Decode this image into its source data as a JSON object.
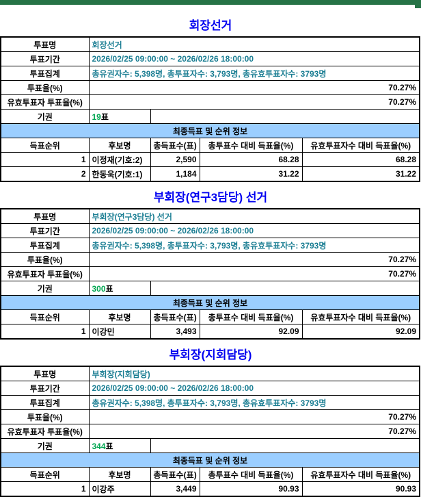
{
  "colors": {
    "top_bar_green": "#267346",
    "title_blue": "#0000f0",
    "value_teal": "#1b7e93",
    "abstain_green": "#00a651",
    "banner_blue": "#9bceff"
  },
  "labels": {
    "vote_name": "투표명",
    "period": "투표기간",
    "tally": "투표집계",
    "turnout": "투표율(%)",
    "valid_turnout": "유효투표자 투표율(%)",
    "abstain": "기권",
    "results_banner": "최종득표 및 순위 정보",
    "results_columns": [
      "득표순위",
      "후보명",
      "총득표수(표)",
      "총투표수 대비 득표율(%)",
      "유효투표자수 대비 득표율(%)"
    ]
  },
  "sections": [
    {
      "title": "회장선거",
      "vote_name": "회장선거",
      "period": "2026/02/25 09:00:00 ~ 2026/02/26 18:00:00",
      "tally": "총유권자수: 5,398명, 총투표자수: 3,793명, 총유효투표자수: 3793명",
      "turnout": "70.27%",
      "valid_turnout": "70.27%",
      "abstain_count": "19",
      "abstain_unit": "표",
      "candidates": [
        {
          "rank": "1",
          "name": "이정재(기호:2)",
          "votes": "2,590",
          "pct_total": "68.28",
          "pct_valid": "68.28"
        },
        {
          "rank": "2",
          "name": "한동욱(기호:1)",
          "votes": "1,184",
          "pct_total": "31.22",
          "pct_valid": "31.22"
        }
      ]
    },
    {
      "title": "부회장(연구3담당) 선거",
      "vote_name": "부회장(연구3담당) 선거",
      "period": "2026/02/25 09:00:00 ~ 2026/02/26 18:00:00",
      "tally": "총유권자수: 5,398명, 총투표자수: 3,793명, 총유효투표자수: 3793명",
      "turnout": "70.27%",
      "valid_turnout": "70.27%",
      "abstain_count": "300",
      "abstain_unit": "표",
      "candidates": [
        {
          "rank": "1",
          "name": "이강민",
          "votes": "3,493",
          "pct_total": "92.09",
          "pct_valid": "92.09"
        }
      ]
    },
    {
      "title": "부회장(지회담당)",
      "vote_name": "부회장(지회담당)",
      "period": "2026/02/25 09:00:00 ~ 2026/02/26 18:00:00",
      "tally": "총유권자수: 5,398명, 총투표자수: 3,793명, 총유효투표자수: 3793명",
      "turnout": "70.27%",
      "valid_turnout": "70.27%",
      "abstain_count": "344",
      "abstain_unit": "표",
      "candidates": [
        {
          "rank": "1",
          "name": "이강주",
          "votes": "3,449",
          "pct_total": "90.93",
          "pct_valid": "90.93"
        }
      ]
    }
  ]
}
